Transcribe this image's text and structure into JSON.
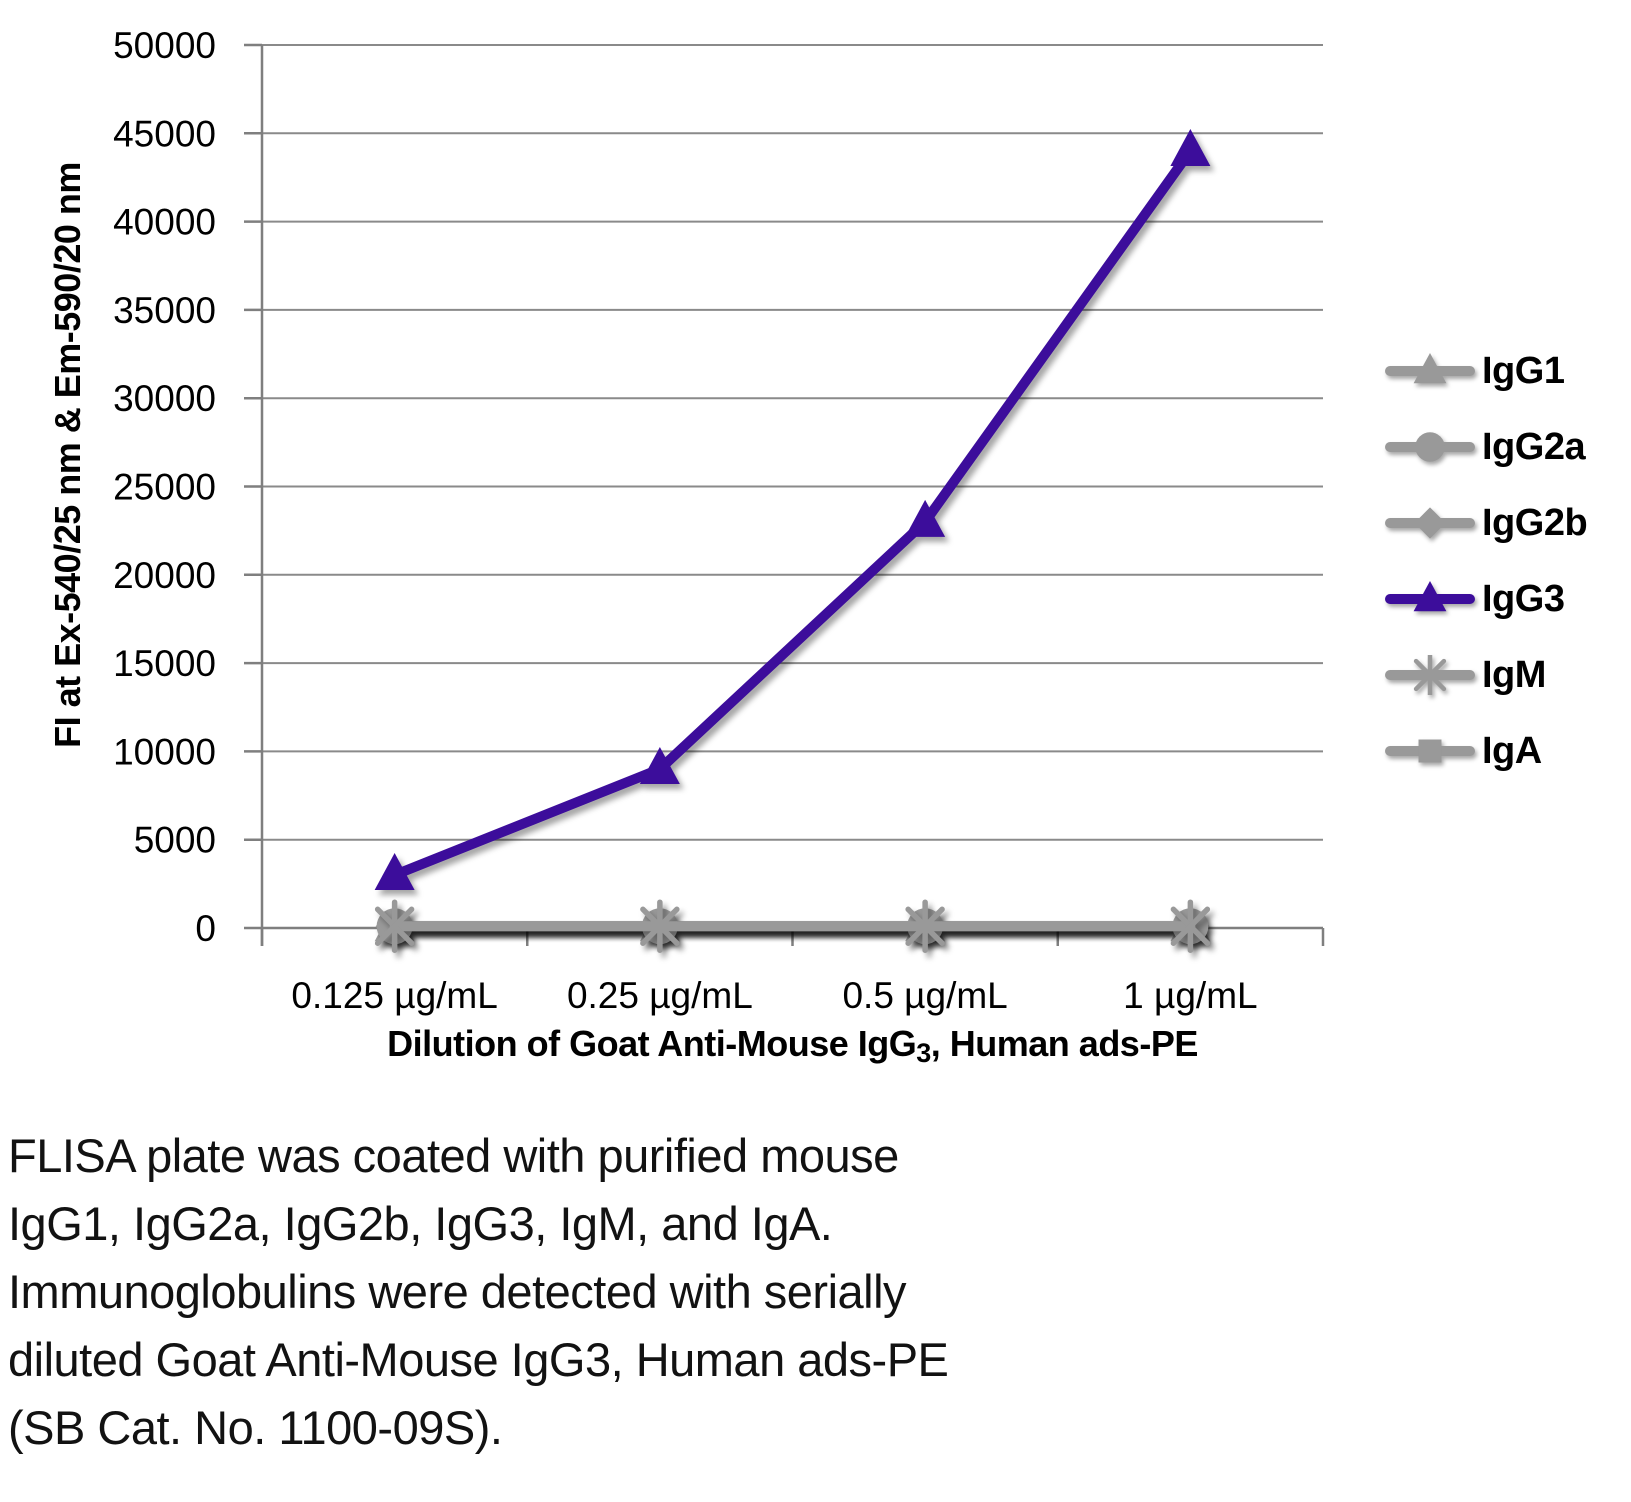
{
  "figure": {
    "caption_lines": [
      "FLISA plate was coated with purified mouse",
      "IgG1, IgG2a, IgG2b, IgG3, IgM, and IgA.",
      "Immunoglobulins were detected with serially",
      "diluted Goat Anti-Mouse IgG3, Human ads-PE",
      "(SB Cat. No. 1100-09S)."
    ]
  },
  "colors": {
    "accent_purple": "#3c0d9b",
    "series_gray": "#999999",
    "grid_gray": "#8a8a8a",
    "axis_gray": "#7f7f7f",
    "text_black": "#000000"
  },
  "chart_data": {
    "type": "line",
    "categories": [
      "0.125 µg/mL",
      "0.25 µg/mL",
      "0.5 µg/mL",
      "1 µg/mL"
    ],
    "series": [
      {
        "name": "IgG1",
        "marker": "triangle",
        "color": "#999999",
        "values": [
          100,
          100,
          100,
          100
        ]
      },
      {
        "name": "IgG2a",
        "marker": "circle",
        "color": "#999999",
        "values": [
          100,
          100,
          100,
          100
        ]
      },
      {
        "name": "IgG2b",
        "marker": "diamond",
        "color": "#999999",
        "values": [
          100,
          100,
          100,
          100
        ]
      },
      {
        "name": "IgG3",
        "marker": "triangle",
        "color": "#3c0d9b",
        "values": [
          3000,
          9000,
          23000,
          44000
        ]
      },
      {
        "name": "IgM",
        "marker": "asterisk",
        "color": "#999999",
        "values": [
          100,
          100,
          100,
          100
        ]
      },
      {
        "name": "IgA",
        "marker": "square",
        "color": "#999999",
        "values": [
          100,
          100,
          100,
          100
        ]
      }
    ],
    "xlabel": "Dilution of Goat Anti-Mouse IgG3, Human ads-PE",
    "xlabel_parts": {
      "pre": "Dilution of Goat Anti-Mouse IgG",
      "sub": "3",
      "post": ", Human ads-PE"
    },
    "ylabel": "FI at Ex-540/25 nm & Em-590/20 nm",
    "ylim": [
      0,
      50000
    ],
    "ytick_step": 5000,
    "grid": true,
    "legend_position": "right"
  }
}
